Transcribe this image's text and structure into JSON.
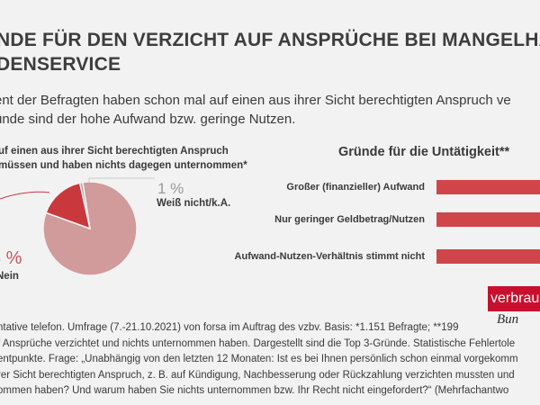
{
  "header": {
    "title_line1": "NDE FÜR DEN VERZICHT AUF ANSPRÜCHE BEI MANGELHAF",
    "title_line2": "DENSERVICE",
    "subtitle_line1": "ent der Befragten haben schon mal auf einen aus ihrer Sicht berechtigten Anspruch ve",
    "subtitle_line2": "ünde sind der hohe Aufwand bzw. geringe Nutzen."
  },
  "left_panel": {
    "heading_line1": "uf einen aus ihrer Sicht berechtigten Anspruch",
    "heading_line2": "müssen und haben nichts dagegen unternommen*",
    "small_pct_label": "1 %",
    "small_cat_label": "Weiß nicht/k.A.",
    "big_pct_label": "3 %",
    "big_cat_label": "Nein"
  },
  "right_panel": {
    "heading": "Gründe für die Untätigkeit**"
  },
  "chart_data": [
    {
      "type": "pie",
      "slices": [
        {
          "label": "Nein",
          "value": 83,
          "color": "#d19a9b"
        },
        {
          "label": "",
          "value": 16,
          "color": "#c9383d"
        },
        {
          "label": "Weiß nicht/k.A.",
          "value": 1,
          "color": "#aaaaaa"
        }
      ]
    },
    {
      "type": "bar",
      "orientation": "horizontal",
      "categories": [
        "Großer (finanzieller) Aufwand",
        "Nur geringer Geldbetrag/Nutzen",
        "Aufwand-Nutzen-Verhältnis stimmt nicht"
      ],
      "color": "#d0454a"
    }
  ],
  "logo": {
    "text": "verbrau",
    "sub": "Bun"
  },
  "footnote": {
    "line1": "ntative telefon. Umfrage (7.-21.10.2021) von forsa im Auftrag des vzbv. Basis: *1.151 Befragte; **199",
    "line2": "f Ansprüche verzichtet und nichts unternommen haben. Dargestellt sind die Top 3-Gründe. Statistische Fehlertole",
    "line3": "entpunkte. Frage: „Unabhängig von den letzten 12 Monaten: Ist es bei Ihnen persönlich schon einmal vorgekomm",
    "line4": "rer Sicht berechtigten Anspruch, z. B. auf Kündigung, Nachbesserung oder Rückzahlung verzichten mussten und",
    "line5": "ommen haben? Und warum haben Sie nichts unternommen bzw. Ihr Recht nicht eingefordert?“ (Mehrfachantwo"
  }
}
